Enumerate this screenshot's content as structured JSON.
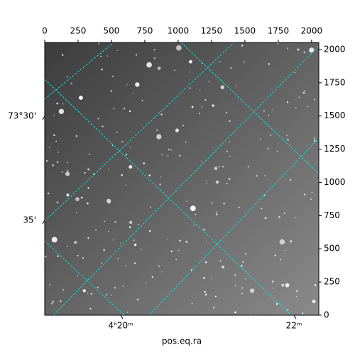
{
  "chart_data": {
    "type": "image",
    "xlabel": "pos.eq.ra",
    "xlim": [
      0,
      2054
    ],
    "xticks": [
      0,
      250,
      500,
      750,
      1000,
      1250,
      1500,
      1750,
      2000
    ],
    "ylim": [
      0,
      2053
    ],
    "yticks": [
      0,
      250,
      500,
      750,
      1000,
      1250,
      1500,
      1750,
      2000
    ],
    "ra_ticks": [
      {
        "value": 65.0,
        "label": "4ʰ20ᵐ"
      },
      {
        "value": 65.5,
        "label": "22ᵐ"
      }
    ],
    "dec_ticks": [
      {
        "value": 73.5,
        "label": "73°30'"
      },
      {
        "value": 73.5833,
        "label": "35'"
      }
    ],
    "grid_color": "#00e5e5"
  }
}
